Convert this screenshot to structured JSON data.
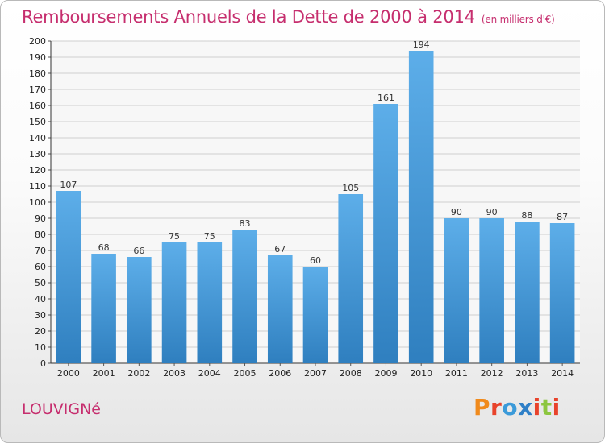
{
  "header": {
    "title": "Remboursements Annuels de la Dette de 2000 à 2014",
    "unit": "(en milliers d'€)"
  },
  "footer": {
    "city": "LOUVIGNé",
    "logo": "Proxiti"
  },
  "colors": {
    "title": "#c62e6e",
    "bar_top": "#5daee9",
    "bar_bottom": "#2f7fbf",
    "logo_letters": [
      "#f08a1c",
      "#e8432b",
      "#3b9ad9",
      "#2e7fc7",
      "#e8432b",
      "#8cc63f",
      "#e8432b"
    ]
  },
  "chart_data": {
    "type": "bar",
    "title": "Remboursements Annuels de la Dette de 2000 à 2014",
    "subtitle": "(en milliers d'€)",
    "categories": [
      "2000",
      "2001",
      "2002",
      "2003",
      "2004",
      "2005",
      "2006",
      "2007",
      "2008",
      "2009",
      "2010",
      "2011",
      "2012",
      "2013",
      "2014"
    ],
    "values": [
      107,
      68,
      66,
      75,
      75,
      83,
      67,
      60,
      105,
      161,
      194,
      90,
      90,
      88,
      87
    ],
    "ylim": [
      0,
      200
    ],
    "y_ticks": [
      0,
      10,
      20,
      30,
      40,
      50,
      60,
      70,
      80,
      90,
      100,
      110,
      120,
      130,
      140,
      150,
      160,
      170,
      180,
      190,
      200
    ],
    "grid": true,
    "data_labels": true
  }
}
